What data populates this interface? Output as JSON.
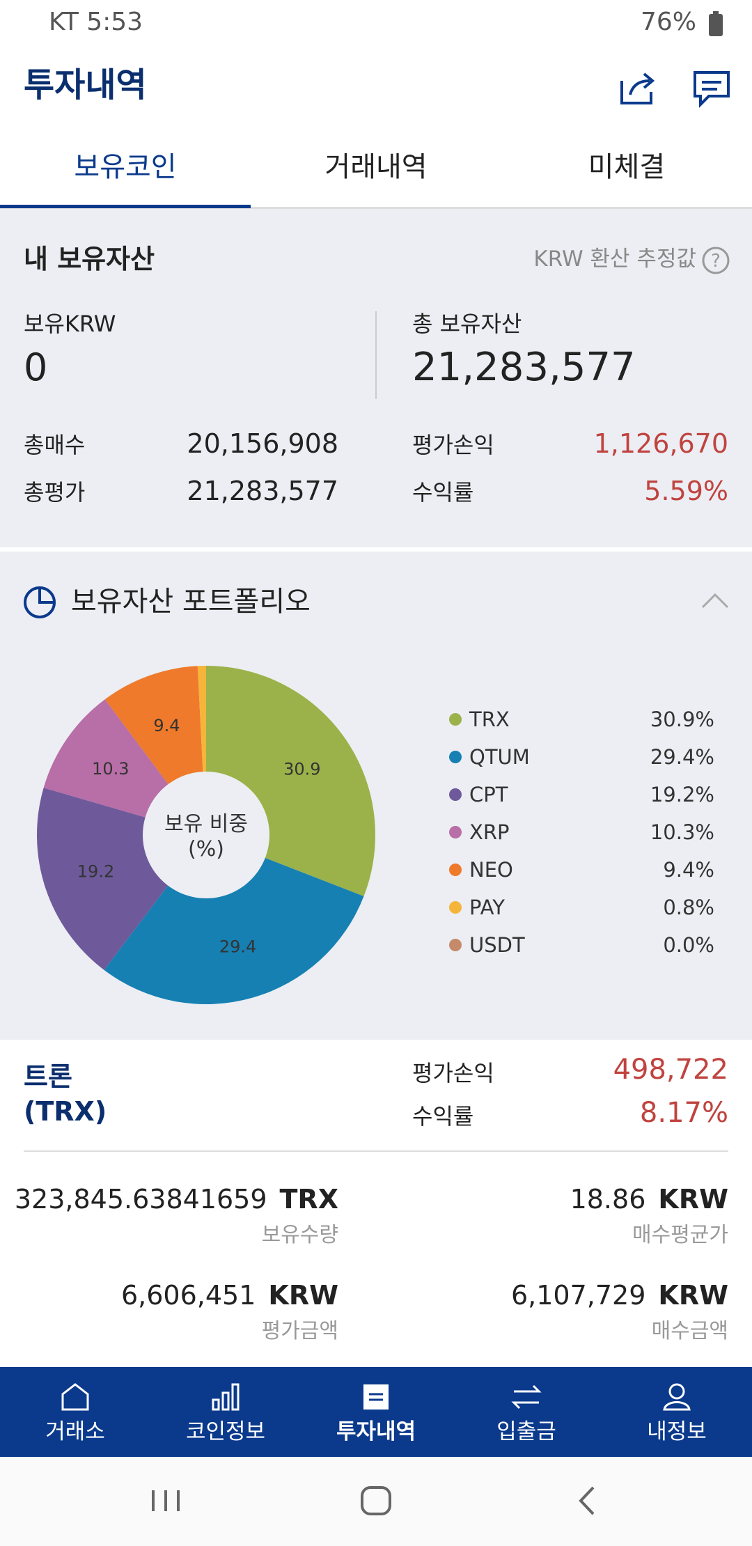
{
  "status_bar": {
    "carrier_time": "KT 5:53",
    "battery": "76%"
  },
  "header": {
    "title": "투자내역"
  },
  "tabs": [
    "보유코인",
    "거래내역",
    "미체결"
  ],
  "assets": {
    "title": "내 보유자산",
    "note": "KRW 환산 추정값",
    "krw_label": "보유KRW",
    "krw_value": "0",
    "total_label": "총 보유자산",
    "total_value": "21,283,577",
    "rows": [
      [
        "총매수",
        "20,156,908"
      ],
      [
        "총평가",
        "21,283,577"
      ],
      [
        "평가손익",
        "1,126,670"
      ],
      [
        "수익률",
        "5.59%"
      ]
    ]
  },
  "portfolio": {
    "title": "보유자산 포트폴리오"
  },
  "chart_data": {
    "type": "pie",
    "center_label": [
      "보유 비중",
      "(%)"
    ],
    "categories": [
      "TRX",
      "QTUM",
      "CPT",
      "XRP",
      "NEO",
      "PAY",
      "USDT"
    ],
    "values": [
      30.9,
      29.4,
      19.2,
      10.3,
      9.4,
      0.8,
      0.0
    ],
    "value_labels": [
      "30.9%",
      "29.4%",
      "19.2%",
      "10.3%",
      "9.4%",
      "0.8%",
      "0.0%"
    ],
    "colors": [
      "#9bb24a",
      "#1680b3",
      "#6e5a9a",
      "#b86ea6",
      "#ef7a2b",
      "#f5b53a",
      "#c48a6a"
    ]
  },
  "coin": {
    "name": "트론",
    "symbol": "(TRX)",
    "pl_label": "평가손익",
    "pl_value": "498,722",
    "rate_label": "수익률",
    "rate_value": "8.17%",
    "details": [
      {
        "value": "323,845.63841659",
        "unit": "TRX",
        "label": "보유수량"
      },
      {
        "value": "18.86",
        "unit": "KRW",
        "label": "매수평균가"
      },
      {
        "value": "6,606,451",
        "unit": "KRW",
        "label": "평가금액"
      },
      {
        "value": "6,107,729",
        "unit": "KRW",
        "label": "매수금액"
      }
    ]
  },
  "nav": [
    "거래소",
    "코인정보",
    "투자내역",
    "입출금",
    "내정보"
  ]
}
